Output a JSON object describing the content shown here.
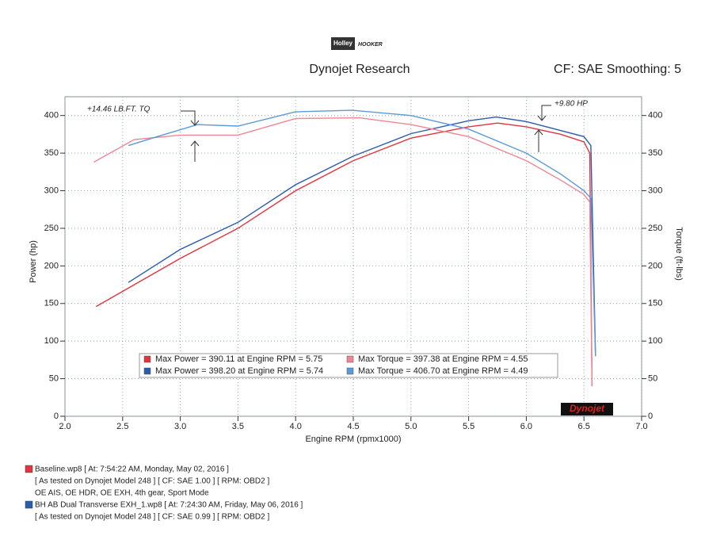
{
  "chart_data": {
    "type": "line",
    "logo": "Holley",
    "logo2": "HOOKER",
    "title": "Dynojet Research",
    "subtitle": "CF: SAE Smoothing: 5",
    "xlabel": "Engine RPM (rpmx1000)",
    "ylabel": "Power (hp)",
    "y2label": "Torque (ft-lbs)",
    "xlim": [
      2.0,
      7.0
    ],
    "xticks": [
      {
        "value": 2.0,
        "label": "2.0"
      },
      {
        "value": 2.5,
        "label": "2.5"
      },
      {
        "value": 3.0,
        "label": "3.0"
      },
      {
        "value": 3.5,
        "label": "3.5"
      },
      {
        "value": 4.0,
        "label": "4.0"
      },
      {
        "value": 4.5,
        "label": "4.5"
      },
      {
        "value": 5.0,
        "label": "5.0"
      },
      {
        "value": 5.5,
        "label": "5.5"
      },
      {
        "value": 6.0,
        "label": "6.0"
      },
      {
        "value": 6.5,
        "label": "6.5"
      },
      {
        "value": 7.0,
        "label": "7.0"
      }
    ],
    "ylim": [
      0,
      425
    ],
    "yticks": [
      0,
      50,
      100,
      150,
      200,
      250,
      300,
      350,
      400
    ],
    "y2lim": [
      0,
      425
    ],
    "y2ticks": [
      0,
      50,
      100,
      150,
      200,
      250,
      300,
      350,
      400
    ],
    "grid": true,
    "series": [
      {
        "color": "#e0343f",
        "x": [
          2.27,
          2.6,
          3.0,
          3.5,
          4.0,
          4.5,
          5.0,
          5.5,
          5.75,
          6.0,
          6.3,
          6.5,
          6.55,
          6.57
        ],
        "values": [
          146,
          175,
          210,
          250,
          300,
          340,
          370,
          385,
          390,
          385,
          375,
          365,
          350,
          40
        ]
      },
      {
        "color": "#2a5cad",
        "x": [
          2.55,
          3.0,
          3.5,
          4.0,
          4.5,
          5.0,
          5.5,
          5.74,
          6.0,
          6.3,
          6.5,
          6.56,
          6.6
        ],
        "values": [
          178,
          222,
          258,
          308,
          346,
          376,
          393,
          398,
          392,
          380,
          372,
          360,
          80
        ]
      },
      {
        "color": "#f08595",
        "x": [
          2.25,
          2.6,
          3.0,
          3.5,
          4.0,
          4.55,
          5.0,
          5.5,
          6.0,
          6.3,
          6.5,
          6.55,
          6.57
        ],
        "values": [
          338,
          368,
          374,
          374,
          396,
          397,
          388,
          372,
          340,
          314,
          295,
          285,
          40
        ]
      },
      {
        "color": "#5a9ad8",
        "x": [
          2.55,
          2.8,
          3.15,
          3.5,
          4.0,
          4.49,
          5.0,
          5.5,
          6.0,
          6.3,
          6.5,
          6.56,
          6.6
        ],
        "values": [
          360,
          372,
          388,
          386,
          405,
          407,
          400,
          382,
          350,
          322,
          300,
          290,
          80
        ],
        "axis": "y2"
      }
    ],
    "stats": [
      "Max Power = 390.11 at Engine RPM = 5.75",
      "Max Power = 398.20 at Engine RPM = 5.74",
      "Max Torque = 397.38 at Engine RPM = 4.55",
      "Max Torque = 406.70 at Engine RPM = 4.49"
    ],
    "annotations": [
      "+14.46 LB.FT. TQ",
      "+9.80 HP"
    ],
    "brand": "Dynojet",
    "runs": [
      {
        "color": "#e0343f",
        "lines": [
          "Baseline.wp8 [ At: 7:54:22 AM, Monday, May 02, 2016 ]",
          "[ As tested on Dynojet Model 248 ]  [ CF: SAE 1.00 ]  [ RPM: OBD2 ]",
          "OE AIS, OE HDR, OE EXH, 4th gear, Sport Mode"
        ]
      },
      {
        "color": "#2a5cad",
        "lines": [
          "BH AB Dual Transverse EXH_1.wp8 [ At: 7:24:30 AM, Friday, May 06, 2016 ]",
          "[ As tested on Dynojet Model 248 ]  [ CF: SAE 0.99 ]  [ RPM: OBD2 ]"
        ]
      }
    ]
  }
}
